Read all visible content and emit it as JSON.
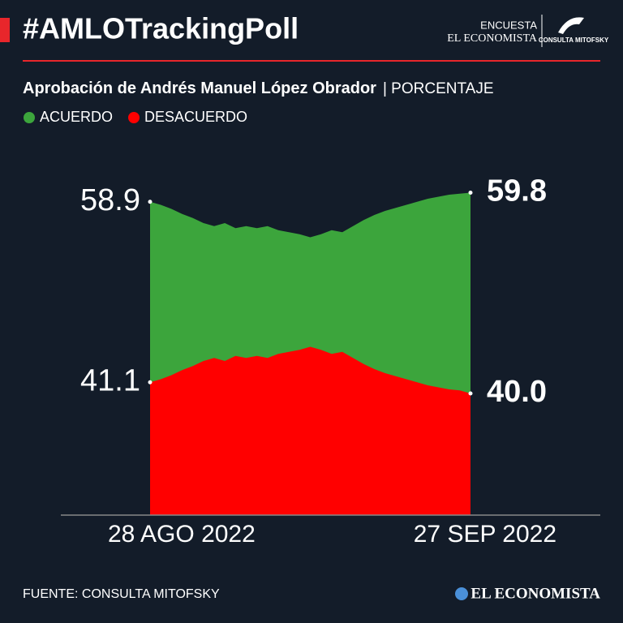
{
  "header": {
    "title": "#AMLOTrackingPoll",
    "survey": "ENCUESTA",
    "brand": "EL ECONOMISTA",
    "partner": "CONSULTA MITOFSKY"
  },
  "chart_data": {
    "type": "area",
    "title": "Aprobación de Andrés Manuel López Obrador",
    "unit": "| PORCENTAJE",
    "x": [
      "28 AGO 2022",
      null,
      null,
      null,
      null,
      null,
      null,
      null,
      null,
      null,
      null,
      null,
      null,
      null,
      null,
      null,
      null,
      null,
      null,
      null,
      null,
      null,
      null,
      null,
      null,
      null,
      null,
      null,
      null,
      null,
      "27 SEP 2022"
    ],
    "series": [
      {
        "name": "ACUERDO",
        "color": "#3ca53c",
        "values": [
          58.9,
          58.6,
          58.2,
          57.7,
          57.3,
          56.8,
          56.5,
          56.8,
          56.3,
          56.5,
          56.3,
          56.5,
          56.1,
          55.9,
          55.7,
          55.4,
          55.7,
          56.1,
          55.9,
          56.5,
          57.1,
          57.6,
          58.0,
          58.3,
          58.6,
          58.9,
          59.2,
          59.4,
          59.6,
          59.7,
          59.8
        ]
      },
      {
        "name": "DESACUERDO",
        "color": "#ff0000",
        "values": [
          41.1,
          41.4,
          41.8,
          42.3,
          42.7,
          43.2,
          43.5,
          43.2,
          43.7,
          43.5,
          43.7,
          43.5,
          43.9,
          44.1,
          44.3,
          44.6,
          44.3,
          43.9,
          44.1,
          43.5,
          42.9,
          42.4,
          42.0,
          41.7,
          41.4,
          41.1,
          40.8,
          40.6,
          40.4,
          40.3,
          40.0
        ],
        "value_labels": [
          "41.1",
          null,
          null,
          null,
          null,
          null,
          null,
          null,
          null,
          null,
          null,
          null,
          null,
          null,
          null,
          null,
          null,
          null,
          null,
          null,
          null,
          null,
          null,
          null,
          null,
          null,
          null,
          null,
          null,
          null,
          "40.0"
        ]
      }
    ],
    "ylim": [
      28,
      62
    ]
  },
  "footer": {
    "source": "FUENTE: CONSULTA MITOFSKY",
    "logo": "EL ECONOMISTA"
  }
}
